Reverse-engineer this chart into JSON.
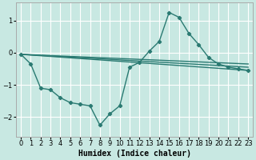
{
  "xlabel": "Humidex (Indice chaleur)",
  "background_color": "#c8e8e2",
  "grid_color": "#ffffff",
  "line_color": "#2a7a72",
  "xlim": [
    -0.5,
    23.5
  ],
  "ylim": [
    -2.6,
    1.55
  ],
  "yticks": [
    -2,
    -1,
    0,
    1
  ],
  "xticks": [
    0,
    1,
    2,
    3,
    4,
    5,
    6,
    7,
    8,
    9,
    10,
    11,
    12,
    13,
    14,
    15,
    16,
    17,
    18,
    19,
    20,
    21,
    22,
    23
  ],
  "main_x": [
    0,
    1,
    2,
    3,
    4,
    5,
    6,
    7,
    8,
    9,
    10,
    11,
    12,
    13,
    14,
    15,
    16,
    17,
    18,
    19,
    20,
    21,
    22,
    23
  ],
  "main_y": [
    -0.05,
    -0.35,
    -1.1,
    -1.15,
    -1.4,
    -1.55,
    -1.6,
    -1.65,
    -2.25,
    -1.9,
    -1.65,
    -0.45,
    -0.3,
    0.05,
    0.35,
    1.25,
    1.1,
    0.6,
    0.25,
    -0.15,
    -0.35,
    -0.45,
    -0.5,
    -0.55
  ],
  "trend_lines": [
    {
      "x": [
        0,
        23
      ],
      "y": [
        -0.05,
        -0.55
      ]
    },
    {
      "x": [
        0,
        23
      ],
      "y": [
        -0.05,
        -0.45
      ]
    },
    {
      "x": [
        0,
        23
      ],
      "y": [
        -0.05,
        -0.35
      ]
    }
  ],
  "xlabel_fontsize": 7,
  "tick_labelsize": 6
}
